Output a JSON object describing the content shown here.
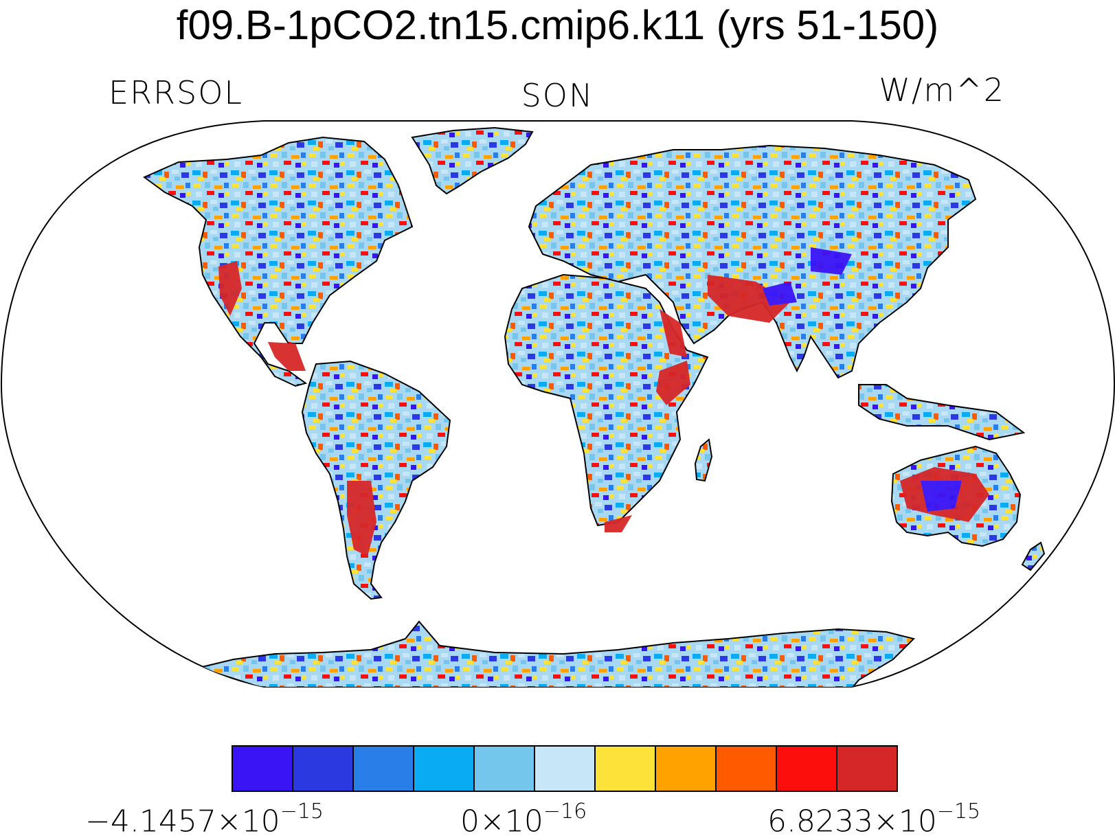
{
  "title": "f09.B-1pCO2.tn15.cmip6.k11 (yrs 51-150)",
  "left_string": "ERRSOL",
  "center_string": "SON",
  "right_string": "W/m^2",
  "colorbar": {
    "colors": [
      "#3b14f5",
      "#2b3ae0",
      "#2a7ee8",
      "#09acf2",
      "#74c6ed",
      "#c7e6f7",
      "#fde23a",
      "#ffa200",
      "#ff5a00",
      "#fb0e0b",
      "#d62728"
    ],
    "label_min": {
      "mantissa": "−4.1457×10",
      "exponent": "−15"
    },
    "label_mid": {
      "mantissa": "0×10",
      "exponent": "−16"
    },
    "label_max": {
      "mantissa": "6.8233×10",
      "exponent": "−15"
    }
  },
  "map": {
    "projection": "robinson",
    "field": "ERRSOL",
    "season": "SON",
    "units": "W/m^2",
    "coastlines": true,
    "ocean_masked": true
  }
}
